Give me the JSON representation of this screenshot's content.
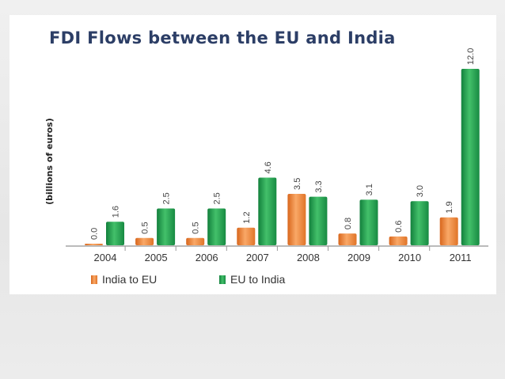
{
  "title": "FDI Flows between the EU and India",
  "chart_data": {
    "type": "bar",
    "title": "FDI Flows between the EU and India",
    "ylabel": "(billions of euros)",
    "xlabel": "",
    "categories": [
      "2004",
      "2005",
      "2006",
      "2007",
      "2008",
      "2009",
      "2010",
      "2011"
    ],
    "series": [
      {
        "name": "India to EU",
        "color": "#f0893a",
        "values": [
          0.0,
          0.5,
          0.5,
          1.2,
          3.5,
          0.8,
          0.6,
          1.9
        ],
        "labels": [
          "0.0",
          "0.5",
          "0.5",
          "1.2",
          "3.5",
          "0.8",
          "0.6",
          "1.9"
        ]
      },
      {
        "name": "EU to India",
        "color": "#22a050",
        "values": [
          1.6,
          2.5,
          2.5,
          4.6,
          3.3,
          3.1,
          3.0,
          12.0
        ],
        "labels": [
          "1.6",
          "2.5",
          "2.5",
          "4.6",
          "3.3",
          "3.1",
          "3.0",
          "12.0"
        ]
      }
    ],
    "ylim": [
      0,
      12.0
    ],
    "grid": false,
    "legend": "bottom-left"
  }
}
